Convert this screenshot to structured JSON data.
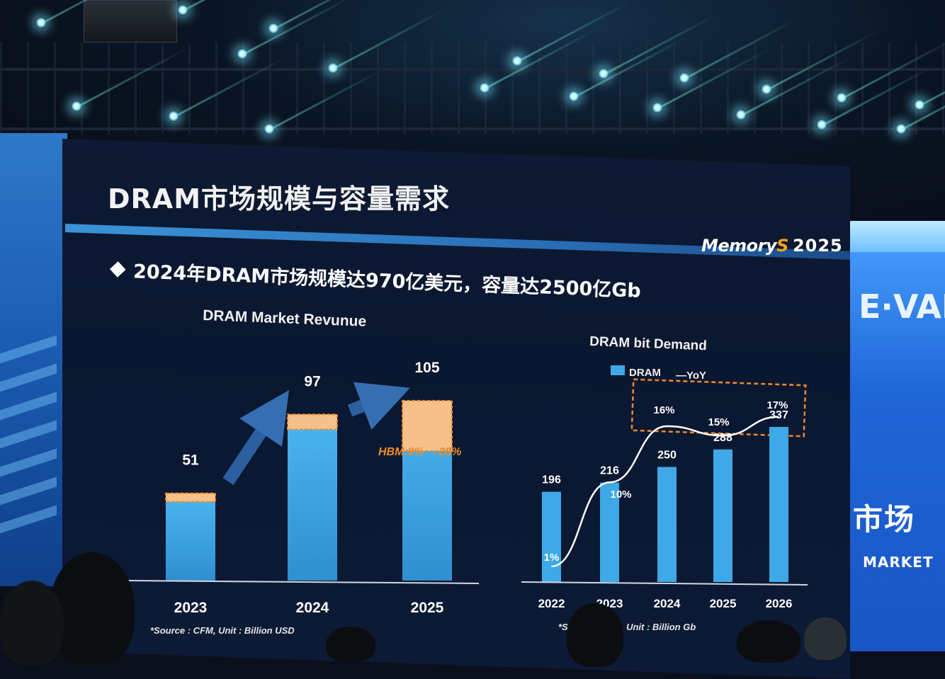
{
  "slide": {
    "title": "DRAM市场规模与容量需求",
    "headline": "2024年DRAM市场规模达970亿美元，容量达2500亿Gb",
    "logo_text": "Memory",
    "logo_mark": "S",
    "logo_year": "2025"
  },
  "side_screens": {
    "right_top_text": "E·VAI",
    "right_cn_text": "市场",
    "right_en_text": "MARKET"
  },
  "colors": {
    "bar_blue": "#3ea9e6",
    "hbm_orange": "#f5c08a",
    "hbm_outline": "#f08a2a",
    "slide_bg": "#0b1830",
    "rule_blue": "#3a93d8"
  },
  "chart_data": [
    {
      "type": "bar",
      "title": "DRAM Market Revunue",
      "categories": [
        "2023",
        "2024",
        "2025"
      ],
      "values": [
        51,
        97,
        105
      ],
      "hbm_share_pct": [
        5,
        9,
        28
      ],
      "value_labels": [
        "51",
        "97",
        "105"
      ],
      "annotation": "HBM:9% →28%",
      "footnote": "*Source : CFM, Unit : Billion USD",
      "ylim": [
        0,
        110
      ]
    },
    {
      "type": "bar",
      "title": "DRAM bit Demand",
      "categories": [
        "2022",
        "2023",
        "2024",
        "2025",
        "2026"
      ],
      "series": [
        {
          "name": "DRAM",
          "values": [
            196,
            216,
            250,
            288,
            337
          ]
        },
        {
          "name": "YoY",
          "values": [
            1,
            10,
            16,
            15,
            17
          ],
          "unit": "%"
        }
      ],
      "value_labels": [
        "196",
        "216",
        "250",
        "288",
        "337"
      ],
      "yoy_labels": [
        "1%",
        "10%",
        "16%",
        "15%",
        "17%"
      ],
      "legend": [
        "DRAM",
        "—YoY"
      ],
      "legend_position": "top",
      "footnote": "*Source : CFM, Unit : Billion Gb",
      "ylim": [
        0,
        350
      ]
    }
  ]
}
